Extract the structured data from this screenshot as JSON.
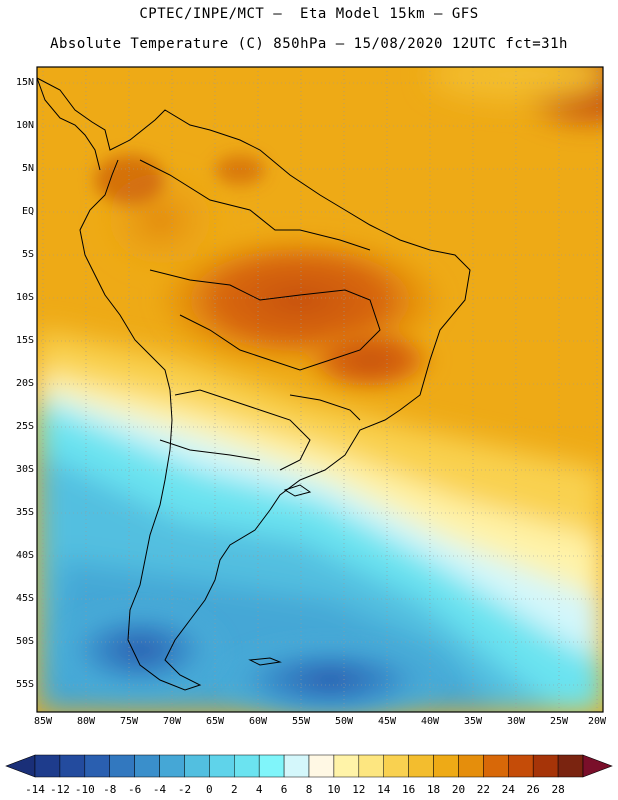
{
  "header": {
    "title_line1": "CPTEC/INPE/MCT –  Eta Model 15km – GFS",
    "title_line2": "Absolute Temperature (C) 850hPa – 15/08/2020 12UTC fct=31h"
  },
  "map": {
    "lat_labels": [
      "15N",
      "10N",
      "5N",
      "EQ",
      "5S",
      "10S",
      "15S",
      "20S",
      "25S",
      "30S",
      "35S",
      "40S",
      "45S",
      "50S",
      "55S"
    ],
    "lon_labels": [
      "85W",
      "80W",
      "75W",
      "70W",
      "65W",
      "60W",
      "55W",
      "50W",
      "45W",
      "40W",
      "35W",
      "30W",
      "25W",
      "20W"
    ],
    "lat_range": [
      15,
      -58
    ],
    "lon_range": [
      -85.5,
      -20
    ]
  },
  "colorbar": {
    "labels": [
      "-14",
      "-12",
      "-10",
      "-8",
      "-6",
      "-4",
      "-2",
      "0",
      "2",
      "4",
      "6",
      "8",
      "10",
      "12",
      "14",
      "16",
      "18",
      "20",
      "22",
      "24",
      "26",
      "28"
    ],
    "colors": [
      "#1e3c8c",
      "#234b9e",
      "#2a5fb0",
      "#3278bf",
      "#3a8fcb",
      "#45a7d6",
      "#52bfe0",
      "#5fd3ea",
      "#6be3f0",
      "#80f5fa",
      "#d4f7fb",
      "#fff8e4",
      "#fff3a8",
      "#fde680",
      "#f9d150",
      "#f3bd2e",
      "#eeaa16",
      "#e58e0c",
      "#d86808",
      "#c54c08",
      "#a63408",
      "#7a2410"
    ],
    "under_color": "#1a2f78",
    "over_color": "#7a0f2a"
  }
}
